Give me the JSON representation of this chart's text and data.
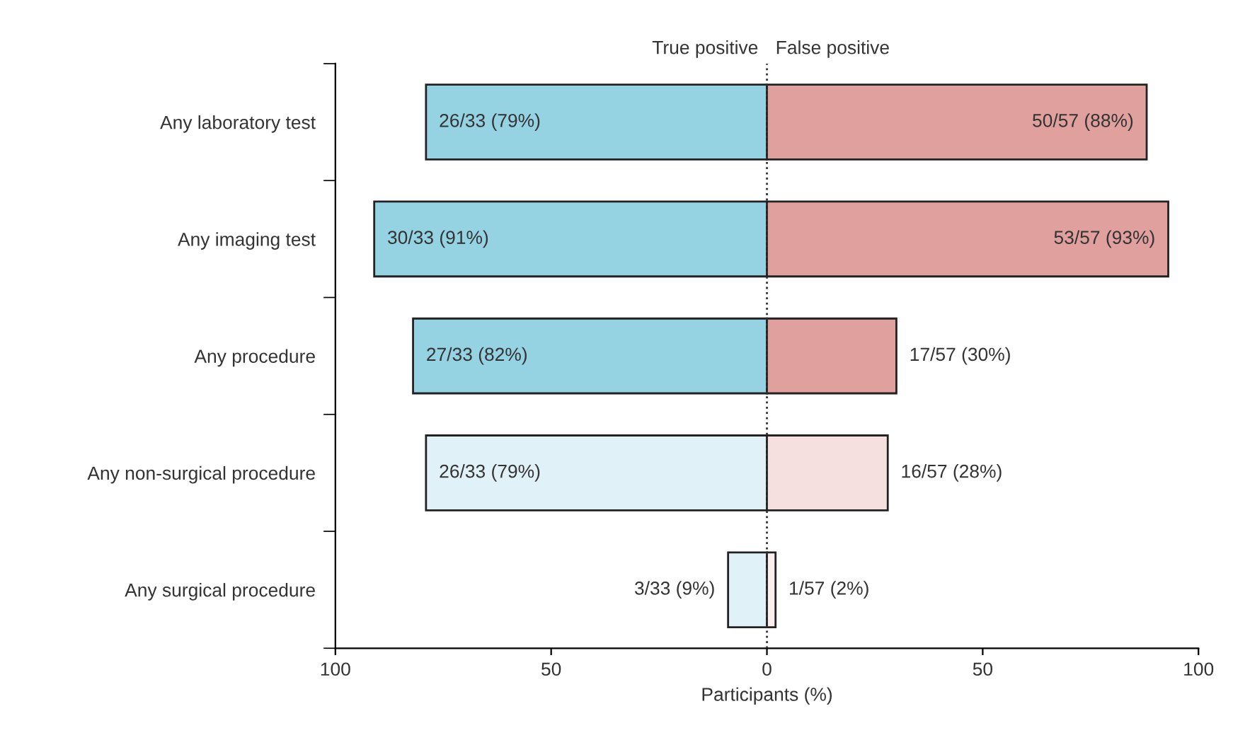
{
  "chart_data": {
    "type": "bar",
    "orientation": "horizontal",
    "xlabel": "Participants (%)",
    "categories": [
      "Any laboratory test",
      "Any imaging test",
      "Any procedure",
      "Any non-surgical procedure",
      "Any surgical procedure"
    ],
    "series": [
      {
        "name": "True positive",
        "colors": [
          "#95d3e3",
          "#95d3e3",
          "#95d3e3",
          "#e0f2f7",
          "#e0f2f7"
        ],
        "base": [
          -79,
          -91,
          -82,
          -79,
          -9
        ],
        "values": [
          79,
          91,
          82,
          79,
          9
        ],
        "value_labels": [
          "26/33 (79%)",
          "30/33 (91%)",
          "27/33 (82%)",
          "26/33 (79%)",
          "3/33 (9%)"
        ]
      },
      {
        "name": "False positive",
        "colors": [
          "#e0a09e",
          "#e0a09e",
          "#e0a09e",
          "#f6e0df",
          "#fcefee"
        ],
        "values": [
          88,
          93,
          30,
          28,
          2
        ],
        "value_labels": [
          "50/57 (88%)",
          "53/57 (93%)",
          "17/57 (30%)",
          "16/57 (28%)",
          "1/57 (2%)"
        ]
      }
    ],
    "xlim": [
      -100,
      100
    ],
    "xticks": [
      {
        "value": -100,
        "label": "100"
      },
      {
        "value": -50,
        "label": "50"
      },
      0,
      50,
      100
    ],
    "ref_lines": [
      {
        "axis": "x",
        "value": 0,
        "line_style": "dotted",
        "color": "#333333"
      }
    ],
    "grid": false,
    "legend": false
  }
}
